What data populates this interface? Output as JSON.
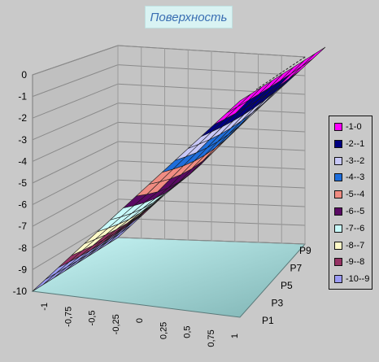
{
  "chart_data": {
    "type": "surface",
    "title": "Поверхность",
    "x_ticks": [
      "-1",
      "-0,75",
      "-0,5",
      "-0,25",
      "0",
      "0,25",
      "0,5",
      "0,75",
      "1"
    ],
    "y_series_ticks": [
      "P1",
      "P3",
      "P5",
      "P7",
      "P9"
    ],
    "z_ticks": [
      "0",
      "-1",
      "-2",
      "-3",
      "-4",
      "-5",
      "-6",
      "-7",
      "-8",
      "-9",
      "-10"
    ],
    "zlim": [
      -10,
      0
    ],
    "x_range": [
      -1,
      1
    ],
    "series_count": 9,
    "surface_function": "z = 5*(x - 1) approx, nearly constant across series",
    "legend": [
      {
        "label": "-1-0",
        "color": "#ff00ff"
      },
      {
        "label": "-2--1",
        "color": "#000080"
      },
      {
        "label": "-3--2",
        "color": "#c8c8f8"
      },
      {
        "label": "-4--3",
        "color": "#1e6edc"
      },
      {
        "label": "-5--4",
        "color": "#f08c82"
      },
      {
        "label": "-6--5",
        "color": "#5a0a64"
      },
      {
        "label": "-7--6",
        "color": "#c8fafa"
      },
      {
        "label": "-8--7",
        "color": "#fffac8"
      },
      {
        "label": "-9--8",
        "color": "#963264"
      },
      {
        "label": "-10--9",
        "color": "#9b9bf5"
      }
    ],
    "legend_position": "right",
    "grid": true
  }
}
